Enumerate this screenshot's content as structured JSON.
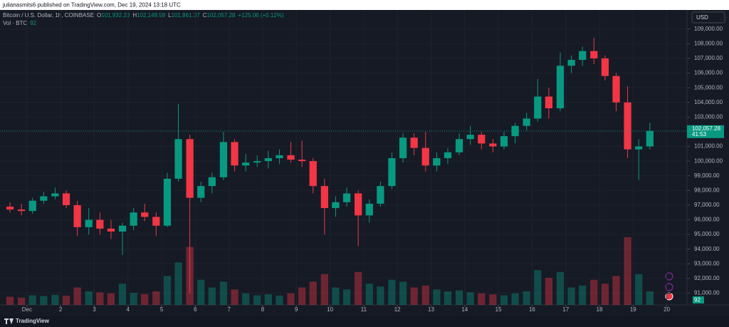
{
  "header": {
    "text": "julianasmits6 published on TradingView.com, Dec 19, 2024 13:18 UTC"
  },
  "footer": {
    "brand": "TradingView"
  },
  "chart_data": {
    "type": "candlestick",
    "legend": {
      "symbol": "Bitcoin / U.S. Dollar, 1h, COINBASE",
      "items": [
        {
          "key": "O",
          "value": "101,932.23"
        },
        {
          "key": "H",
          "value": "102,149.98"
        },
        {
          "key": "L",
          "value": "101,861.37"
        },
        {
          "key": "C",
          "value": "102,057.28"
        }
      ],
      "change": "+125.06 (+0.12%)"
    },
    "volume_legend": {
      "name": "Vol · BTC",
      "value": 92
    },
    "currency": "USD",
    "last_price": {
      "value": 102057.28,
      "label": "102,057.28",
      "countdown": "41:53"
    },
    "up_color": "#089981",
    "down_color": "#f23645",
    "x": [
      0.33,
      0.67,
      1.0,
      1.33,
      1.67,
      2.0,
      2.33,
      2.67,
      3.0,
      3.33,
      3.67,
      4.0,
      4.33,
      4.67,
      5.0,
      5.33,
      5.67,
      6.0,
      6.33,
      6.67,
      7.0,
      7.33,
      7.67,
      8.0,
      8.33,
      8.67,
      9.0,
      9.33,
      9.67,
      10.0,
      10.33,
      10.67,
      11.0,
      11.33,
      11.67,
      12.0,
      12.33,
      12.67,
      13.0,
      13.33,
      13.67,
      14.0,
      14.33,
      14.67,
      15.0,
      15.33,
      15.67,
      16.0,
      16.33,
      16.67,
      17.0,
      17.33,
      17.67,
      18.0,
      18.33,
      18.67,
      19.0,
      19.33
    ],
    "open": [
      96900,
      96700,
      96600,
      97300,
      97600,
      97800,
      97000,
      95500,
      96000,
      95400,
      95200,
      95600,
      96500,
      96200,
      95600,
      98800,
      101500,
      97500,
      98300,
      98900,
      101300,
      99700,
      99900,
      100000,
      100200,
      100400,
      100100,
      100000,
      98300,
      96800,
      97200,
      97800,
      96300,
      97100,
      98300,
      100200,
      101600,
      100900,
      99700,
      100200,
      100600,
      101500,
      101800,
      101200,
      101000,
      101700,
      102400,
      102900,
      104400,
      103600,
      106500,
      106900,
      107500,
      107000,
      105800,
      104000,
      100800,
      101000
    ],
    "high": [
      97200,
      97100,
      97500,
      97900,
      98200,
      98000,
      97300,
      96800,
      96500,
      96000,
      95800,
      96800,
      97100,
      96500,
      99200,
      103900,
      101800,
      98600,
      99200,
      102000,
      101500,
      100500,
      100400,
      100700,
      100800,
      101300,
      101400,
      100200,
      98800,
      97600,
      98200,
      98000,
      97400,
      98600,
      100600,
      101900,
      101900,
      102000,
      100600,
      100900,
      101900,
      102400,
      102000,
      101500,
      102000,
      102600,
      103300,
      105600,
      105000,
      107400,
      107200,
      107800,
      108400,
      107200,
      106000,
      105100,
      101500,
      102600
    ],
    "low": [
      96500,
      96300,
      96400,
      97100,
      97400,
      96800,
      94900,
      95000,
      95000,
      94700,
      93600,
      95300,
      95900,
      94900,
      95500,
      98600,
      91000,
      97200,
      97800,
      98700,
      99300,
      99300,
      99600,
      99500,
      99800,
      99900,
      99600,
      97800,
      95000,
      96200,
      96900,
      94200,
      95800,
      96900,
      98100,
      99900,
      100400,
      99300,
      99300,
      99800,
      100400,
      101100,
      100800,
      100600,
      100800,
      101200,
      102100,
      102700,
      102900,
      103400,
      106000,
      106500,
      106600,
      105500,
      103400,
      100200,
      98700,
      100800
    ],
    "close": [
      96700,
      96600,
      97300,
      97600,
      97800,
      97000,
      95500,
      96000,
      95400,
      95200,
      95600,
      96500,
      96200,
      95600,
      98800,
      101500,
      97500,
      98300,
      98900,
      101300,
      99700,
      99900,
      100000,
      100200,
      100400,
      100100,
      100000,
      98300,
      96800,
      97200,
      97800,
      96300,
      97100,
      98300,
      100200,
      101600,
      100900,
      99700,
      100200,
      100600,
      101500,
      101800,
      101200,
      101000,
      101700,
      102400,
      102900,
      104400,
      103600,
      106500,
      106900,
      107500,
      107000,
      105800,
      104000,
      100800,
      101000,
      102057.28
    ],
    "volume": [
      420,
      380,
      500,
      460,
      520,
      480,
      900,
      700,
      650,
      600,
      1100,
      620,
      560,
      700,
      1500,
      2200,
      3000,
      1300,
      900,
      1200,
      800,
      600,
      500,
      550,
      480,
      600,
      900,
      1200,
      1600,
      900,
      800,
      1700,
      1100,
      950,
      1300,
      1200,
      900,
      1000,
      800,
      700,
      750,
      650,
      600,
      550,
      500,
      600,
      700,
      1800,
      1400,
      1700,
      900,
      1000,
      1300,
      1100,
      1500,
      3500,
      1600,
      700
    ],
    "xlim": [
      0.2,
      20.6
    ],
    "ylim": [
      90200,
      110300
    ],
    "xticks": [
      {
        "value": 1,
        "label": "Dec"
      },
      2,
      3,
      4,
      5,
      6,
      7,
      8,
      9,
      10,
      11,
      12,
      13,
      14,
      15,
      16,
      17,
      18,
      19,
      20
    ],
    "yticks": [
      {
        "value": 91000,
        "label": "91,000.00"
      },
      {
        "value": 92000,
        "label": "92,000.00"
      },
      {
        "value": 93000,
        "label": "93,000.00"
      },
      {
        "value": 94000,
        "label": "94,000.00"
      },
      {
        "value": 95000,
        "label": "95,000.00"
      },
      {
        "value": 96000,
        "label": "96,000.00"
      },
      {
        "value": 97000,
        "label": "97,000.00"
      },
      {
        "value": 98000,
        "label": "98,000.00"
      },
      {
        "value": 99000,
        "label": "99,000.00"
      },
      {
        "value": 100000,
        "label": "100,000.00"
      },
      {
        "value": 101000,
        "label": "101,000.00"
      },
      {
        "value": 102000,
        "label": "102,000.00"
      },
      {
        "value": 103000,
        "label": "103,000.00"
      },
      {
        "value": 104000,
        "label": "104,000.00"
      },
      {
        "value": 105000,
        "label": "105,000.00"
      },
      {
        "value": 106000,
        "label": "106,000.00"
      },
      {
        "value": 107000,
        "label": "107,000.00"
      },
      {
        "value": 108000,
        "label": "108,000.00"
      },
      {
        "value": 109000,
        "label": "109,000.00"
      }
    ],
    "grid": true
  }
}
